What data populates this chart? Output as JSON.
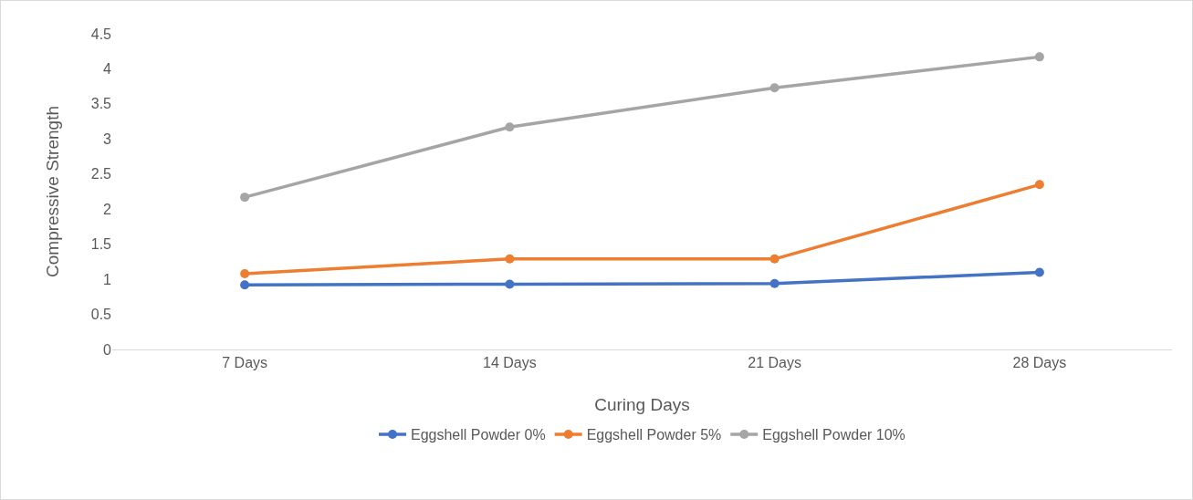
{
  "chart_data": {
    "type": "line",
    "xlabel": "Curing Days",
    "ylabel": "Compressive Strength",
    "categories": [
      "7 Days",
      "14 Days",
      "21 Days",
      "28 Days"
    ],
    "series": [
      {
        "name": "Eggshell Powder 0%",
        "color": "#4472c4",
        "values": [
          0.92,
          0.93,
          0.94,
          1.1
        ]
      },
      {
        "name": "Eggshell Powder 5%",
        "color": "#ed7d31",
        "values": [
          1.08,
          1.29,
          1.29,
          2.35
        ]
      },
      {
        "name": "Eggshell Powder 10%",
        "color": "#a5a5a5",
        "values": [
          2.17,
          3.17,
          3.73,
          4.17
        ]
      }
    ],
    "ylim": [
      0,
      4.5
    ],
    "yticks": [
      0,
      0.5,
      1,
      1.5,
      2,
      2.5,
      3,
      3.5,
      4,
      4.5
    ],
    "grid": false,
    "legend": "bottom",
    "marker": "circle",
    "line_style": "solid"
  }
}
